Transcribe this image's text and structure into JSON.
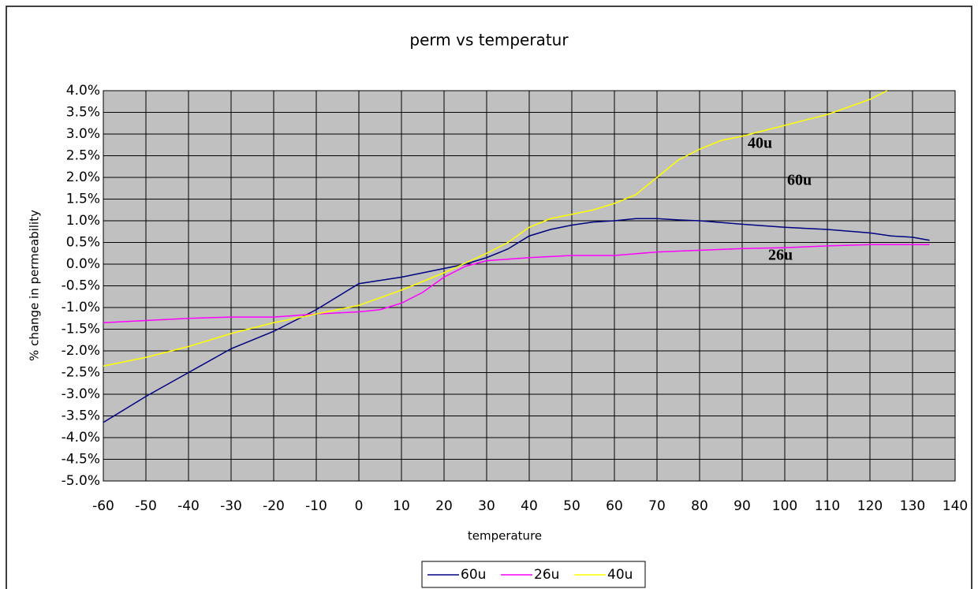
{
  "chart_data": {
    "type": "line",
    "title": "perm vs temperatur",
    "x_label": "temperature",
    "y_label": "% change in permeability",
    "xlim": [
      -60,
      140
    ],
    "xticks": [
      -60,
      -50,
      -40,
      -30,
      -20,
      -10,
      0,
      10,
      20,
      30,
      40,
      50,
      60,
      70,
      80,
      90,
      100,
      110,
      120,
      130,
      140
    ],
    "ylim": [
      -5,
      4
    ],
    "yticks": [
      {
        "value": 4,
        "label": "4.0%"
      },
      {
        "value": 3.5,
        "label": "3.5%"
      },
      {
        "value": 3,
        "label": "3.0%"
      },
      {
        "value": 2.5,
        "label": "2.5%"
      },
      {
        "value": 2,
        "label": "2.0%"
      },
      {
        "value": 1.5,
        "label": "1.5%"
      },
      {
        "value": 1,
        "label": "1.0%"
      },
      {
        "value": 0.5,
        "label": "0.5%"
      },
      {
        "value": 0,
        "label": "0.0%"
      },
      {
        "value": -0.5,
        "label": "-0.5%"
      },
      {
        "value": -1,
        "label": "-1.0%"
      },
      {
        "value": -1.5,
        "label": "-1.5%"
      },
      {
        "value": -2,
        "label": "-2.0%"
      },
      {
        "value": -2.5,
        "label": "-2.5%"
      },
      {
        "value": -3,
        "label": "-3.0%"
      },
      {
        "value": -3.5,
        "label": "-3.5%"
      },
      {
        "value": -4,
        "label": "-4.0%"
      },
      {
        "value": -4.5,
        "label": "-4.5%"
      },
      {
        "value": -5,
        "label": "-5.0%"
      }
    ],
    "grid": true,
    "legend": "bottom",
    "series": [
      {
        "name": "60u",
        "color": "#000080",
        "x": [
          -60,
          -50,
          -40,
          -30,
          -20,
          -10,
          0,
          10,
          20,
          25,
          30,
          35,
          40,
          45,
          50,
          55,
          60,
          65,
          70,
          75,
          80,
          90,
          100,
          110,
          120,
          125,
          130,
          134
        ],
        "values": [
          -3.65,
          -3.05,
          -2.5,
          -1.95,
          -1.55,
          -1.05,
          -0.45,
          -0.3,
          -0.1,
          0,
          0.15,
          0.35,
          0.65,
          0.8,
          0.9,
          0.97,
          1.0,
          1.05,
          1.05,
          1.02,
          1.0,
          0.92,
          0.85,
          0.8,
          0.72,
          0.65,
          0.62,
          0.55
        ]
      },
      {
        "name": "26u",
        "color": "#ff00ff",
        "x": [
          -60,
          -50,
          -40,
          -30,
          -20,
          -10,
          0,
          5,
          10,
          15,
          20,
          25,
          30,
          40,
          50,
          60,
          70,
          80,
          90,
          100,
          110,
          120,
          134
        ],
        "values": [
          -1.35,
          -1.3,
          -1.25,
          -1.22,
          -1.22,
          -1.15,
          -1.1,
          -1.05,
          -0.9,
          -0.65,
          -0.3,
          -0.05,
          0.08,
          0.15,
          0.2,
          0.2,
          0.28,
          0.32,
          0.36,
          0.38,
          0.42,
          0.45,
          0.45
        ]
      },
      {
        "name": "40u",
        "color": "#ffff00",
        "x": [
          -60,
          -50,
          -40,
          -30,
          -20,
          -10,
          0,
          10,
          20,
          30,
          35,
          40,
          45,
          50,
          55,
          60,
          65,
          70,
          75,
          80,
          85,
          90,
          100,
          110,
          120,
          124
        ],
        "values": [
          -2.35,
          -2.15,
          -1.9,
          -1.6,
          -1.35,
          -1.15,
          -0.95,
          -0.6,
          -0.2,
          0.25,
          0.5,
          0.85,
          1.05,
          1.15,
          1.25,
          1.4,
          1.6,
          2.0,
          2.4,
          2.65,
          2.85,
          2.95,
          3.2,
          3.45,
          3.8,
          4.0
        ]
      }
    ],
    "annotations": [
      "40u",
      "60u",
      "26u"
    ]
  }
}
